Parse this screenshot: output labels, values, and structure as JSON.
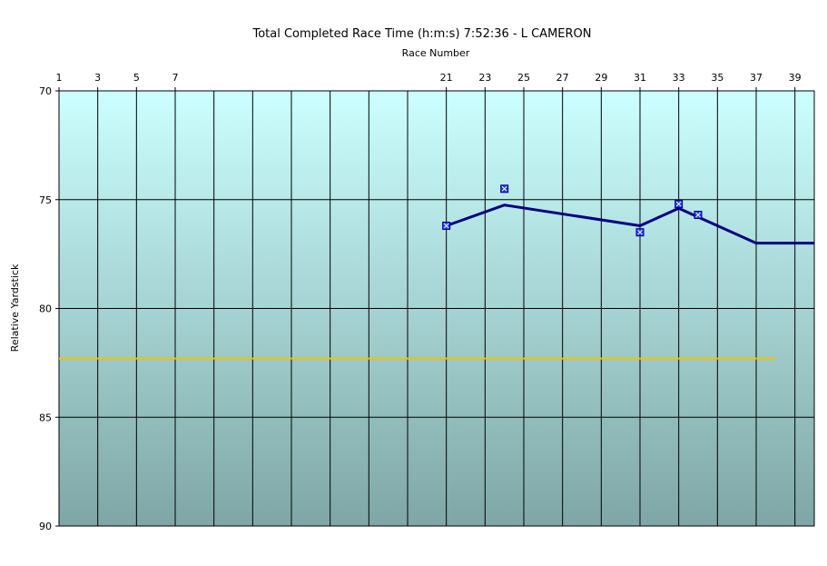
{
  "chart_data": {
    "type": "line",
    "title": "Total Completed Race Time (h:m:s) 7:52:36 -  L CAMERON",
    "xlabel": "Race Number",
    "ylabel": "Relative Yardstick",
    "xlim": [
      1,
      40
    ],
    "ylim": [
      70,
      90
    ],
    "y_inverted": true,
    "x_ticks": [
      "1",
      "3",
      "5",
      "7",
      "21",
      "23",
      "25",
      "27",
      "29",
      "31",
      "33",
      "35",
      "37",
      "39"
    ],
    "y_ticks": [
      "70",
      "75",
      "80",
      "85",
      "90"
    ],
    "grid": true,
    "series": [
      {
        "kind": "line",
        "color": "#000080",
        "x": [
          21,
          24,
          31,
          33,
          34,
          37,
          40
        ],
        "y": [
          76.2,
          75.25,
          76.2,
          75.4,
          75.8,
          77.0,
          77.0
        ]
      },
      {
        "kind": "markers",
        "color": "#1f3fff",
        "x": [
          21,
          24,
          31,
          33,
          34
        ],
        "y": [
          76.2,
          74.5,
          76.5,
          75.2,
          75.7
        ]
      },
      {
        "kind": "reference",
        "color": "#f2c200",
        "x": [
          1,
          38
        ],
        "y": [
          82.3,
          82.3
        ]
      }
    ]
  }
}
